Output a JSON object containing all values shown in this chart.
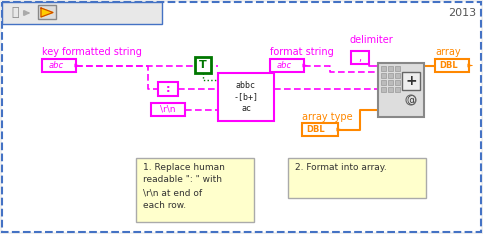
{
  "bg_color": "#f0f0f0",
  "white": "#ffffff",
  "magenta": "#ff00ff",
  "orange": "#ff8800",
  "green": "#007700",
  "dark": "#333333",
  "blue_border": "#4472c4",
  "yellow_note": "#ffffcc",
  "gray_func": "#cccccc",
  "note1": "1. Replace human\nreadable \": \" with\n\\r\\n at end of\neach row.",
  "note2": "2. Format into array.",
  "lbl_key": "key formatted string",
  "lbl_fmt": "format string",
  "lbl_delim": "delimiter",
  "lbl_array": "array",
  "lbl_arrtype": "array type",
  "title": "2013"
}
